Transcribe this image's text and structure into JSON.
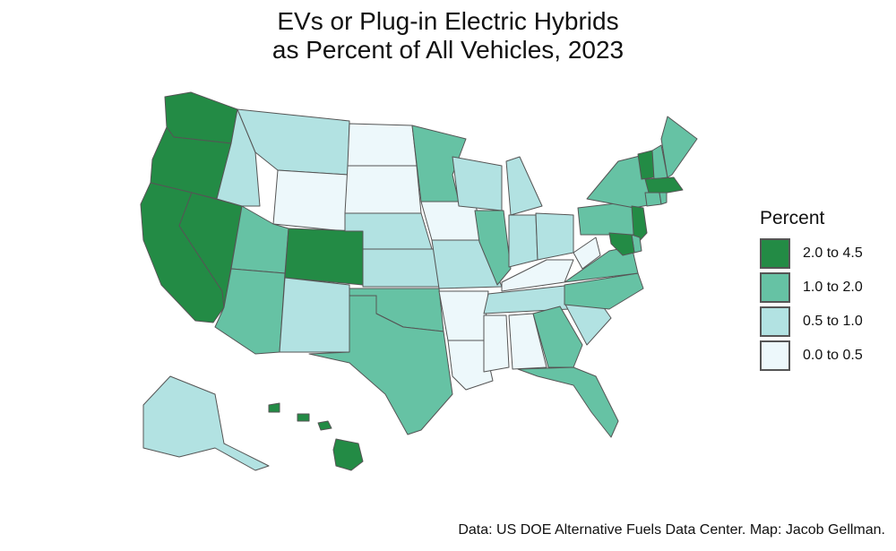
{
  "title_lines": [
    "EVs or Plug-in Electric Hybrids",
    "as Percent of All Vehicles, 2023"
  ],
  "legend": {
    "title": "Percent",
    "items": [
      {
        "label": "2.0 to 4.5",
        "color": "#238b45"
      },
      {
        "label": "1.0 to 2.0",
        "color": "#66c2a4"
      },
      {
        "label": "0.5 to 1.0",
        "color": "#b2e2e2"
      },
      {
        "label": "0.0 to 0.5",
        "color": "#edf8fb"
      }
    ]
  },
  "source": "Data: US DOE Alternative Fuels Data Center. Map: Jacob Gellman.",
  "state_bins": {
    "WA": 0,
    "OR": 0,
    "CA": 0,
    "NV": 0,
    "CO": 0,
    "HI": 0,
    "VT": 0,
    "MA": 0,
    "NJ": 0,
    "MD": 0,
    "UT": 1,
    "AZ": 1,
    "TX": 1,
    "OK": 1,
    "MN": 1,
    "IL": 1,
    "GA": 1,
    "FL": 1,
    "VA": 1,
    "NC": 1,
    "PA": 1,
    "NY": 1,
    "ME": 1,
    "NH": 1,
    "DE": 1,
    "CT": 1,
    "RI": 1,
    "ID": 2,
    "MT": 2,
    "NM": 2,
    "NE": 2,
    "KS": 2,
    "MO": 2,
    "WI": 2,
    "MI": 2,
    "IN": 2,
    "OH": 2,
    "TN": 2,
    "SC": 2,
    "AK": 2,
    "WY": 3,
    "ND": 3,
    "SD": 3,
    "IA": 3,
    "AR": 3,
    "LA": 3,
    "MS": 3,
    "AL": 3,
    "KY": 3,
    "WV": 3
  }
}
